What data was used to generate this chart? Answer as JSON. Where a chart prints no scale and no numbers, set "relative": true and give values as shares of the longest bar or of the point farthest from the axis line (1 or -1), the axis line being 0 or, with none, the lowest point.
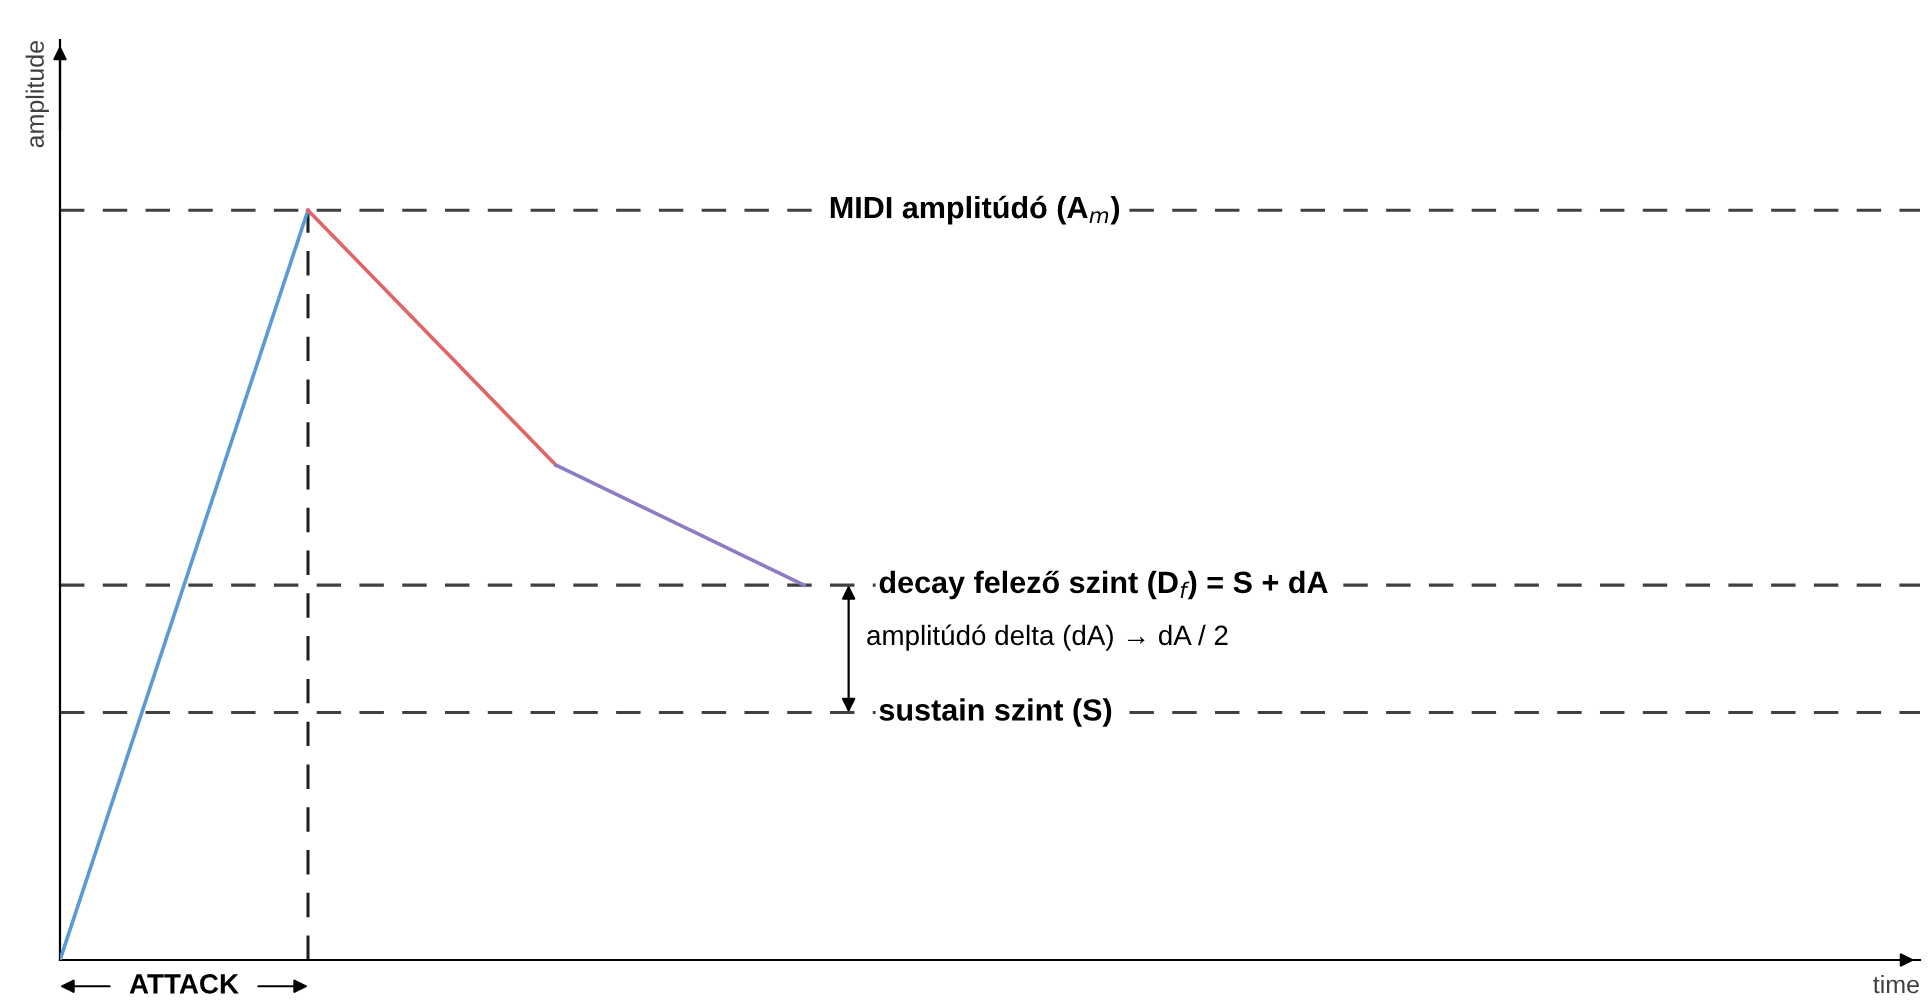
{
  "chart_data": {
    "type": "line",
    "relative": true,
    "ylabel": "amplitude",
    "categories": [
      null,
      null,
      null,
      null
    ],
    "series": [
      {
        "color": "#5b9bd5",
        "values": [
          0,
          1,
          null,
          null
        ]
      },
      {
        "color": "#e06666",
        "values": [
          null,
          1,
          0.66,
          null
        ]
      },
      {
        "color": "#8e7cc3",
        "values": [
          null,
          null,
          0.66,
          0.5
        ]
      }
    ],
    "ref_lines": [
      {
        "axis": "y",
        "value": 1,
        "label": "MIDI amplitúdó (A$_{m}$)",
        "color": "#404040",
        "line_style": "dashed"
      },
      {
        "axis": "y",
        "value": 0.5,
        "label": "decay felező szint (D$_{f}$) = S + dA",
        "color": "#404040",
        "line_style": "dashed"
      },
      {
        "axis": "y",
        "value": 0.33,
        "label": "sustain szint (S)",
        "color": "#404040",
        "line_style": "dashed"
      }
    ],
    "annotations": [
      "ATTACK",
      "amplitúdó delta (dA) → dA / 2",
      "time"
    ],
    "grid": false,
    "legend": false,
    "marker": "none",
    "line_style": "solid"
  }
}
